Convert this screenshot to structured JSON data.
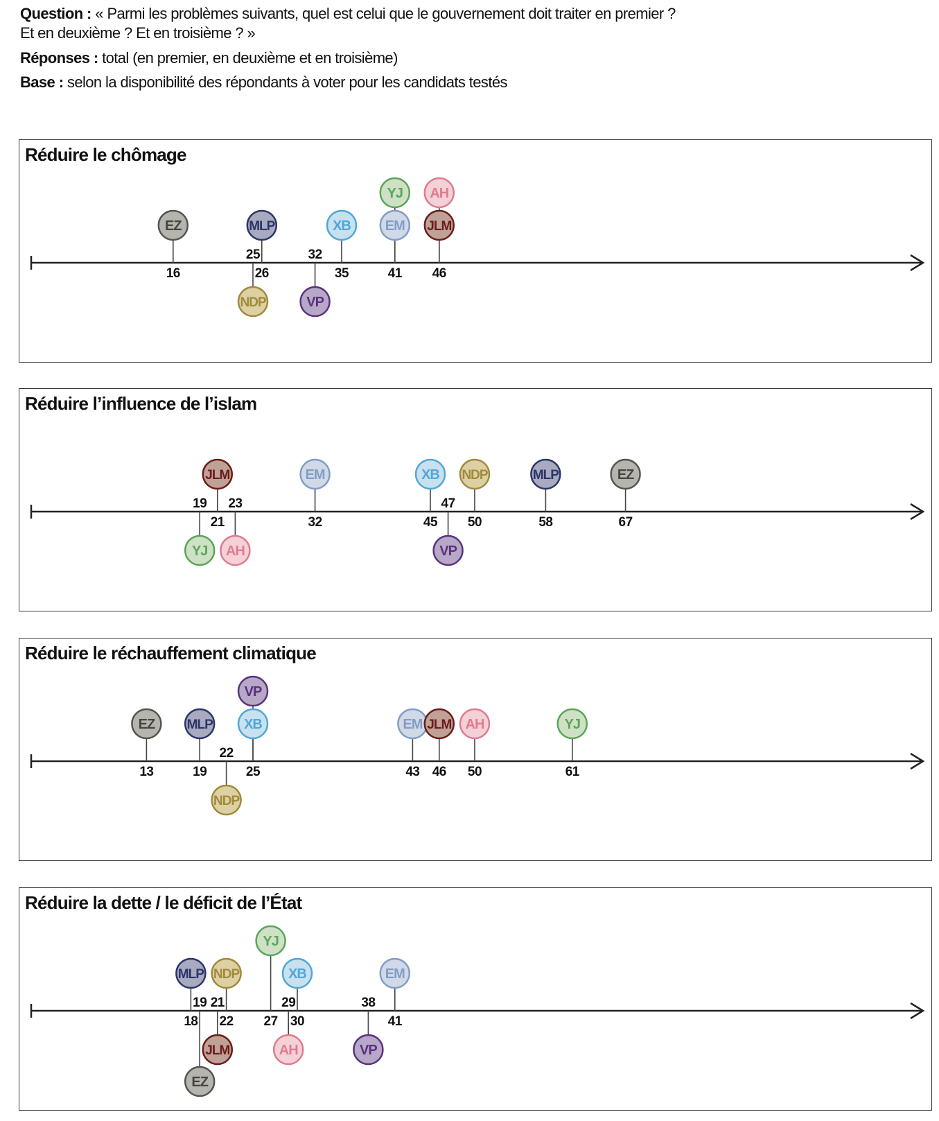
{
  "header": {
    "question_label": "Question :",
    "question_line1": " « Parmi les problèmes suivants, quel est celui que le gouvernement doit traiter en premier ?",
    "question_line2": "Et en deuxième ? Et en troisième ?  »",
    "responses_label": "Réponses :",
    "responses_text": " total (en premier, en deuxième et en troisième)",
    "base_label": "Base :",
    "base_text": " selon la disponibilité des répondants à voter pour les candidats testés"
  },
  "colors": {
    "EZ": {
      "stroke": "#555550",
      "fill": "#b6b4ae",
      "text": "#45453f"
    },
    "MLP": {
      "stroke": "#2b3668",
      "fill": "#a9aac0",
      "text": "#2b3668"
    },
    "XB": {
      "stroke": "#4fa7d9",
      "fill": "#c9e1ef",
      "text": "#4fa7d9"
    },
    "YJ": {
      "stroke": "#5aa55a",
      "fill": "#cfe1c5",
      "text": "#5aa55a"
    },
    "EM": {
      "stroke": "#809dc9",
      "fill": "#d2d9e6",
      "text": "#809dc9"
    },
    "AH": {
      "stroke": "#e07b90",
      "fill": "#f3d1d6",
      "text": "#e07b90"
    },
    "JLM": {
      "stroke": "#6b1b1b",
      "fill": "#bfa195",
      "text": "#6b1b1b"
    },
    "NDP": {
      "stroke": "#a08a3b",
      "fill": "#ddd0a3",
      "text": "#a08a3b"
    },
    "VP": {
      "stroke": "#5a3180",
      "fill": "#b8a8c7",
      "text": "#5a3180"
    }
  },
  "chart_data": [
    {
      "type": "scatter",
      "title": "Réduire le chômage",
      "points": [
        {
          "candidate": "EZ",
          "value": 16
        },
        {
          "candidate": "NDP",
          "value": 25
        },
        {
          "candidate": "MLP",
          "value": 26
        },
        {
          "candidate": "VP",
          "value": 32
        },
        {
          "candidate": "XB",
          "value": 35
        },
        {
          "candidate": "EM",
          "value": 41
        },
        {
          "candidate": "YJ",
          "value": 41
        },
        {
          "candidate": "JLM",
          "value": 46
        },
        {
          "candidate": "AH",
          "value": 46
        }
      ]
    },
    {
      "type": "scatter",
      "title": "Réduire l’influence de l’islam",
      "points": [
        {
          "candidate": "YJ",
          "value": 19
        },
        {
          "candidate": "JLM",
          "value": 21
        },
        {
          "candidate": "AH",
          "value": 23
        },
        {
          "candidate": "EM",
          "value": 32
        },
        {
          "candidate": "XB",
          "value": 45
        },
        {
          "candidate": "VP",
          "value": 47
        },
        {
          "candidate": "NDP",
          "value": 50
        },
        {
          "candidate": "MLP",
          "value": 58
        },
        {
          "candidate": "EZ",
          "value": 67
        }
      ]
    },
    {
      "type": "scatter",
      "title": "Réduire le réchauffement climatique",
      "points": [
        {
          "candidate": "EZ",
          "value": 13
        },
        {
          "candidate": "MLP",
          "value": 19
        },
        {
          "candidate": "NDP",
          "value": 22
        },
        {
          "candidate": "XB",
          "value": 25
        },
        {
          "candidate": "VP",
          "value": 25
        },
        {
          "candidate": "EM",
          "value": 43
        },
        {
          "candidate": "JLM",
          "value": 46
        },
        {
          "candidate": "AH",
          "value": 50
        },
        {
          "candidate": "YJ",
          "value": 61
        }
      ]
    },
    {
      "type": "scatter",
      "title": "Réduire la dette / le déficit de l’État",
      "points": [
        {
          "candidate": "MLP",
          "value": 18
        },
        {
          "candidate": "EZ",
          "value": 19
        },
        {
          "candidate": "JLM",
          "value": 21
        },
        {
          "candidate": "NDP",
          "value": 22
        },
        {
          "candidate": "YJ",
          "value": 27
        },
        {
          "candidate": "AH",
          "value": 29
        },
        {
          "candidate": "XB",
          "value": 30
        },
        {
          "candidate": "VP",
          "value": 38
        },
        {
          "candidate": "EM",
          "value": 41
        }
      ]
    }
  ]
}
